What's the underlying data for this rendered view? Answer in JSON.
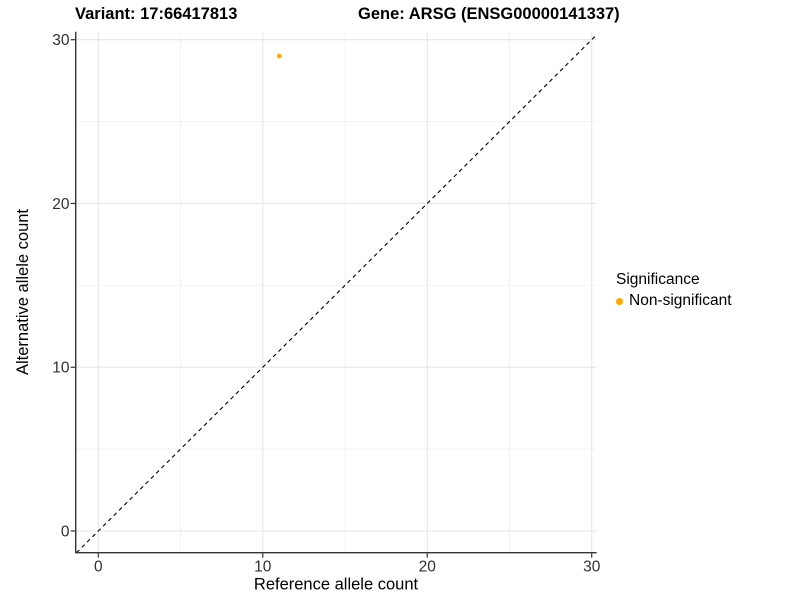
{
  "header": {
    "variant_title": "Variant: 17:66417813",
    "gene_title": "Gene: ARSG (ENSG00000141337)"
  },
  "chart_data": {
    "type": "scatter",
    "title_left": "Variant: 17:66417813",
    "title_right": "Gene: ARSG (ENSG00000141337)",
    "xlabel": "Reference allele count",
    "ylabel": "Alternative allele count",
    "xlim": [
      0,
      30
    ],
    "ylim": [
      0,
      30
    ],
    "x_ticks": [
      0,
      10,
      20,
      30
    ],
    "y_ticks": [
      0,
      10,
      20,
      30
    ],
    "x_minor_ticks": [
      5,
      15,
      25
    ],
    "y_minor_ticks": [
      5,
      15,
      25
    ],
    "grid": true,
    "legend_position": "right",
    "series": [
      {
        "name": "Non-significant",
        "color": "#FFA500",
        "points": [
          {
            "x": 11,
            "y": 29
          }
        ]
      }
    ],
    "reference_line": {
      "type": "identity",
      "style": "dashed",
      "color": "#000000"
    }
  },
  "legend": {
    "title": "Significance",
    "items": [
      {
        "label": "Non-significant",
        "color": "#FFA500",
        "marker": "circle"
      }
    ]
  },
  "colors": {
    "point_non_significant": "#FFA500",
    "grid_major": "#E6E6E6",
    "grid_minor": "#F2F2F2",
    "axis_line": "#333333",
    "tick_text": "#303030",
    "title_text": "#000000",
    "background": "#FFFFFF"
  }
}
